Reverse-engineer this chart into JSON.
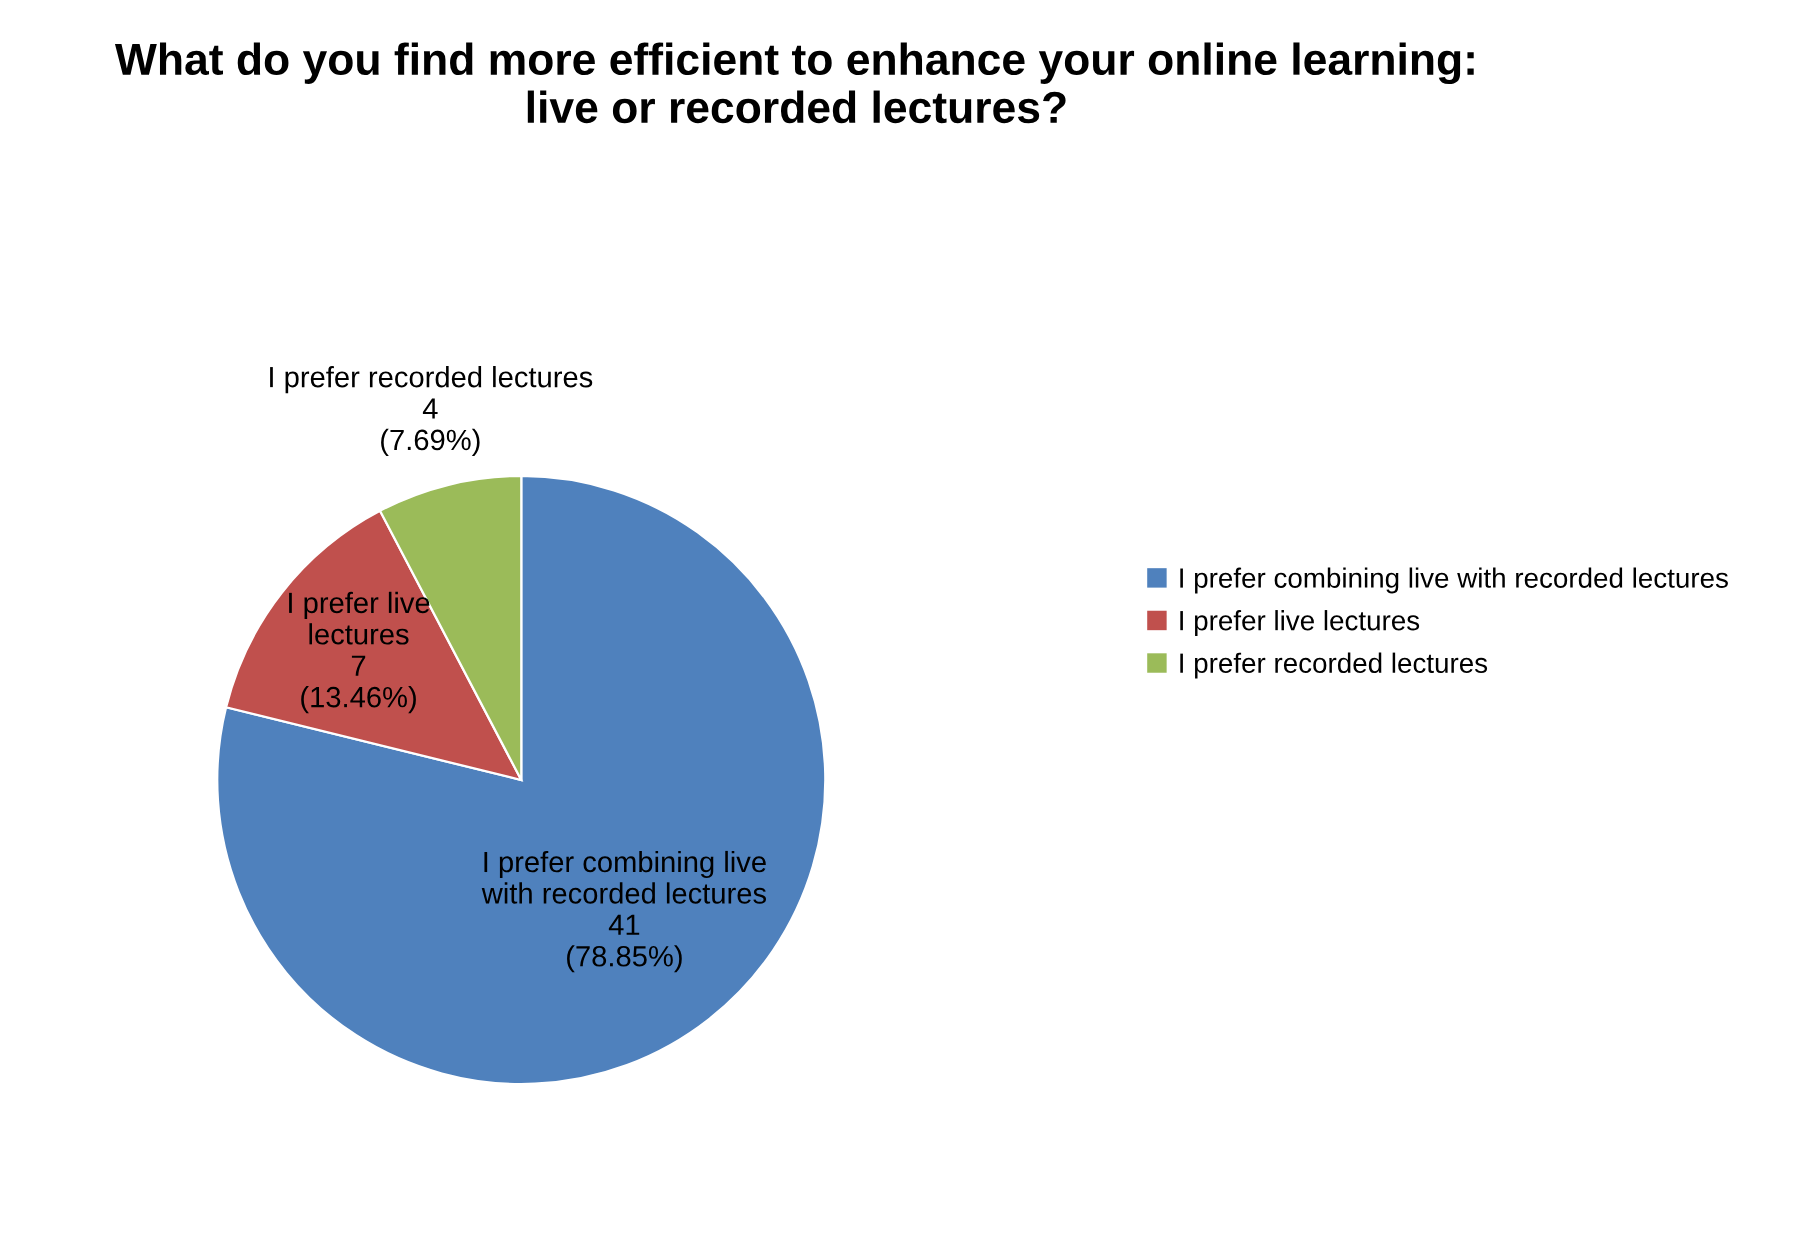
{
  "chart_data": {
    "type": "pie",
    "title": "What do you find more efficient to enhance your online learning:\nlive or recorded lectures?",
    "categories": [
      "I prefer combining live with recorded lectures",
      "I prefer live lectures",
      "I prefer recorded lectures"
    ],
    "values": [
      41,
      7,
      4
    ],
    "value_labels": [
      "41\n(78.85%)",
      "7\n(13.46%)",
      "4\n(7.69%)"
    ],
    "colors": [
      "#4f81bd",
      "#c0504d",
      "#9bbb59"
    ],
    "legend": "right"
  }
}
